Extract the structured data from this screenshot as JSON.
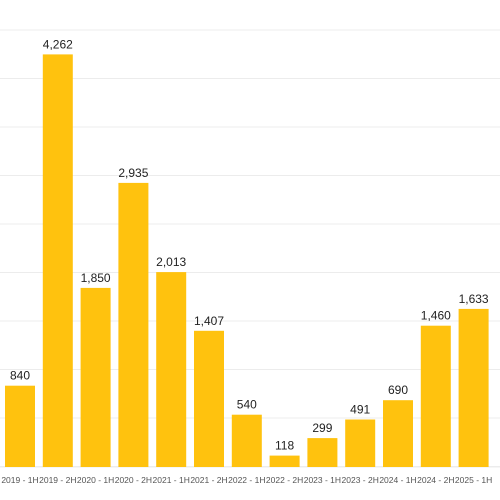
{
  "chart_data": {
    "type": "bar",
    "categories": [
      "2019 - 1H",
      "2019 - 2H",
      "2020 - 1H",
      "2020 - 2H",
      "2021 - 1H",
      "2021 - 2H",
      "2022 - 1H",
      "2022 - 2H",
      "2023 - 1H",
      "2023 - 2H",
      "2024 - 1H",
      "2024 - 2H",
      "2025 - 1H"
    ],
    "values": [
      840,
      4262,
      1850,
      2935,
      2013,
      1407,
      540,
      118,
      299,
      491,
      690,
      1460,
      1633
    ],
    "value_labels": [
      "840",
      "4,262",
      "1,850",
      "2,935",
      "2,013",
      "1,407",
      "540",
      "118",
      "299",
      "491",
      "690",
      "1,460",
      "1,633"
    ],
    "title": "",
    "xlabel": "",
    "ylabel": "",
    "ylim": [
      0,
      5000
    ],
    "grid": true,
    "legend": "none",
    "bar_color": "#FFC20E"
  }
}
